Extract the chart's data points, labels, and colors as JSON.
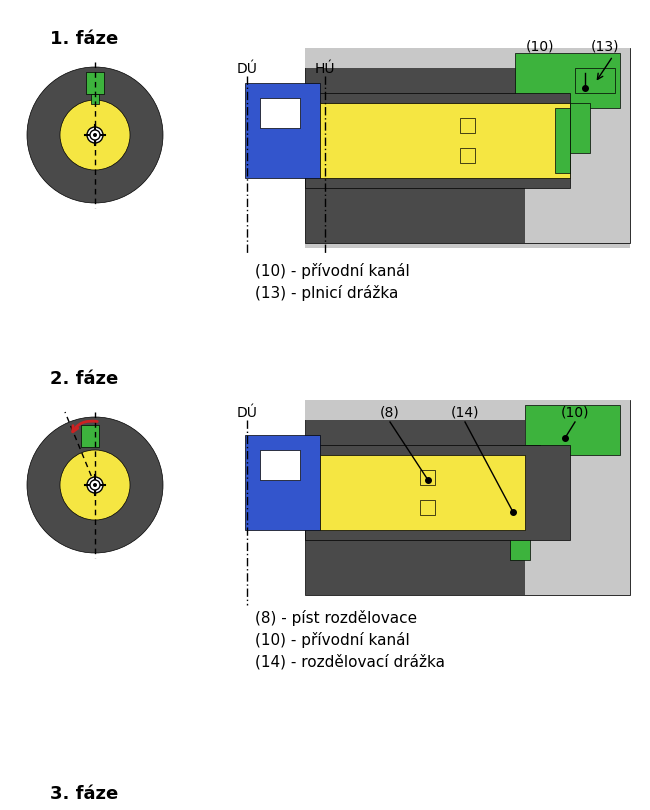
{
  "bg_color": "#ffffff",
  "dark_color": "#4a4a4a",
  "yellow_color": "#f5e642",
  "green_color": "#3db33d",
  "blue_color": "#3355cc",
  "gray_color": "#b0b0b0",
  "light_gray": "#c8c8c8",
  "black": "#000000",
  "white": "#ffffff",
  "red_color": "#cc2222",
  "phase1_label": "1. fáze",
  "phase2_label": "2. fáze",
  "phase3_label": "3. fáze",
  "legend1_line1": "(10) - přívodní kanál",
  "legend1_line2": "(13) - plnicí drážka",
  "legend2_line1": "(8) - píst rozdělovacе",
  "legend2_line2": "(10) - přívodní kanál",
  "legend2_line3": "(14) - rozdělovací drážka",
  "label_DU": "DÚ",
  "label_HU": "HÚ",
  "label_10": "(10)",
  "label_13": "(13)",
  "label_8": "(8)",
  "label_14": "(14)",
  "label_10b": "(10)"
}
